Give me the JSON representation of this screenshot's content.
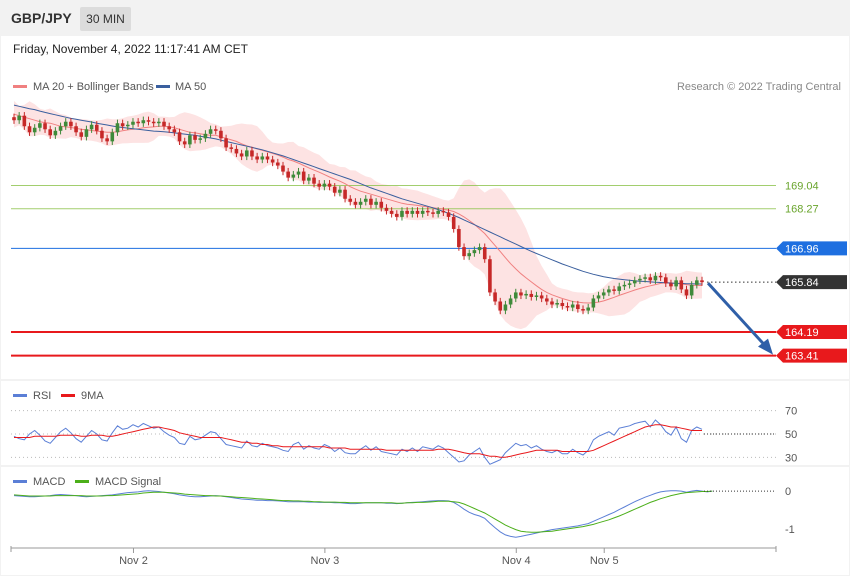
{
  "header": {
    "pair": "GBP/JPY",
    "timeframe": "30 MIN",
    "datetime": "Friday, November 4, 2022 11:17:41 AM CET"
  },
  "legend": {
    "ma20": {
      "label": "MA 20 + Bollinger Bands",
      "color": "#f08080"
    },
    "ma50": {
      "label": "MA 50",
      "color": "#3a5f9e"
    },
    "credit": "Research © 2022 Trading Central"
  },
  "chart_data": [
    {
      "type": "candlestick",
      "name": "price",
      "x_ticks": [
        "Nov 2",
        "Nov 3",
        "Nov 4",
        "Nov 5"
      ],
      "ylim": [
        162.8,
        172.2
      ],
      "levels": [
        {
          "value": 169.04,
          "label": "169.04",
          "kind": "resistance",
          "color": "#8bc34a"
        },
        {
          "value": 168.27,
          "label": "168.27",
          "kind": "resistance",
          "color": "#8bc34a"
        },
        {
          "value": 166.96,
          "label": "166.96",
          "kind": "pivot",
          "color": "#1e6fe0"
        },
        {
          "value": 165.84,
          "label": "165.84",
          "kind": "last",
          "color": "#333333"
        },
        {
          "value": 164.19,
          "label": "164.19",
          "kind": "support",
          "color": "#e8191c"
        },
        {
          "value": 163.41,
          "label": "163.41",
          "kind": "support",
          "color": "#e8191c"
        }
      ],
      "closes": [
        171.2,
        171.35,
        171.0,
        170.8,
        170.95,
        171.1,
        170.9,
        170.7,
        170.85,
        171.0,
        171.15,
        171.0,
        170.8,
        170.65,
        170.9,
        171.05,
        170.85,
        170.6,
        170.5,
        170.8,
        171.1,
        171.0,
        171.05,
        171.15,
        171.1,
        171.2,
        171.15,
        171.1,
        171.15,
        171.0,
        170.9,
        170.8,
        170.5,
        170.4,
        170.7,
        170.55,
        170.6,
        170.75,
        170.9,
        170.85,
        170.6,
        170.3,
        170.25,
        170.1,
        170.0,
        170.2,
        170.0,
        169.9,
        170.0,
        169.9,
        169.8,
        169.7,
        169.5,
        169.3,
        169.4,
        169.5,
        169.2,
        169.3,
        169.1,
        169.0,
        169.1,
        169.0,
        168.8,
        168.9,
        168.6,
        168.5,
        168.4,
        168.5,
        168.6,
        168.4,
        168.5,
        168.3,
        168.2,
        168.1,
        168.0,
        168.2,
        168.1,
        168.2,
        168.1,
        168.2,
        168.15,
        168.1,
        168.2,
        168.15,
        168.0,
        167.6,
        167.0,
        166.7,
        166.8,
        166.9,
        167.0,
        166.6,
        165.5,
        165.2,
        164.9,
        165.1,
        165.3,
        165.5,
        165.4,
        165.45,
        165.35,
        165.4,
        165.3,
        165.2,
        165.1,
        165.15,
        165.05,
        165.0,
        165.1,
        164.95,
        164.9,
        165.0,
        165.3,
        165.4,
        165.5,
        165.6,
        165.55,
        165.7,
        165.75,
        165.8,
        165.9,
        165.95,
        166.0,
        165.9,
        166.05,
        166.0,
        165.8,
        165.7,
        165.9,
        165.6,
        165.4,
        165.75,
        165.9,
        165.84
      ],
      "ma20": [
        171.4,
        171.35,
        171.3,
        171.25,
        171.2,
        171.15,
        171.12,
        171.1,
        171.05,
        171.0,
        170.98,
        170.96,
        170.93,
        170.9,
        170.88,
        170.86,
        170.84,
        170.82,
        170.8,
        170.8,
        170.82,
        170.85,
        170.88,
        170.9,
        170.92,
        170.95,
        170.97,
        170.98,
        171.0,
        171.0,
        170.98,
        170.95,
        170.9,
        170.85,
        170.8,
        170.78,
        170.75,
        170.72,
        170.7,
        170.7,
        170.65,
        170.6,
        170.55,
        170.5,
        170.42,
        170.35,
        170.3,
        170.25,
        170.2,
        170.15,
        170.1,
        170.05,
        169.98,
        169.9,
        169.85,
        169.78,
        169.7,
        169.62,
        169.55,
        169.48,
        169.4,
        169.32,
        169.25,
        169.18,
        169.1,
        169.0,
        168.92,
        168.85,
        168.8,
        168.75,
        168.7,
        168.65,
        168.6,
        168.55,
        168.5,
        168.45,
        168.42,
        168.4,
        168.38,
        168.35,
        168.33,
        168.3,
        168.28,
        168.25,
        168.22,
        168.18,
        168.1,
        168.0,
        167.88,
        167.75,
        167.6,
        167.45,
        167.25,
        167.05,
        166.85,
        166.65,
        166.45,
        166.28,
        166.12,
        165.98,
        165.85,
        165.72,
        165.6,
        165.5,
        165.42,
        165.36,
        165.3,
        165.25,
        165.2,
        165.18,
        165.16,
        165.15,
        165.16,
        165.18,
        165.22,
        165.28,
        165.34,
        165.4,
        165.46,
        165.52,
        165.58,
        165.63,
        165.68,
        165.72,
        165.76,
        165.8,
        165.82,
        165.82,
        165.8,
        165.78,
        165.76,
        165.74,
        165.73,
        165.73
      ],
      "ma50": [
        171.7,
        171.66,
        171.62,
        171.58,
        171.55,
        171.5,
        171.46,
        171.42,
        171.38,
        171.34,
        171.3,
        171.26,
        171.23,
        171.2,
        171.17,
        171.14,
        171.1,
        171.07,
        171.04,
        171.01,
        170.98,
        170.96,
        170.94,
        170.92,
        170.9,
        170.88,
        170.86,
        170.84,
        170.83,
        170.82,
        170.8,
        170.78,
        170.76,
        170.74,
        170.72,
        170.7,
        170.67,
        170.64,
        170.61,
        170.58,
        170.54,
        170.5,
        170.46,
        170.42,
        170.38,
        170.34,
        170.3,
        170.26,
        170.22,
        170.17,
        170.12,
        170.07,
        170.02,
        169.96,
        169.9,
        169.84,
        169.78,
        169.72,
        169.66,
        169.6,
        169.54,
        169.48,
        169.42,
        169.36,
        169.3,
        169.24,
        169.17,
        169.1,
        169.03,
        168.96,
        168.9,
        168.84,
        168.78,
        168.72,
        168.66,
        168.6,
        168.55,
        168.5,
        168.45,
        168.4,
        168.35,
        168.3,
        168.24,
        168.18,
        168.12,
        168.05,
        167.98,
        167.9,
        167.82,
        167.74,
        167.66,
        167.58,
        167.5,
        167.42,
        167.34,
        167.26,
        167.18,
        167.1,
        167.02,
        166.94,
        166.86,
        166.79,
        166.72,
        166.65,
        166.58,
        166.51,
        166.44,
        166.38,
        166.32,
        166.26,
        166.2,
        166.15,
        166.1,
        166.06,
        166.02,
        165.99,
        165.96,
        165.94,
        165.92,
        165.9,
        165.88,
        165.87,
        165.86,
        165.85,
        165.84,
        165.83,
        165.82,
        165.81,
        165.8,
        165.8,
        165.79,
        165.79,
        165.78,
        165.78
      ]
    },
    {
      "type": "line",
      "name": "rsi-panel",
      "ylim": [
        20,
        80
      ],
      "y_ticks": [
        70,
        50,
        30
      ],
      "series": [
        {
          "name": "RSI",
          "color": "#5b7fd6",
          "values": [
            48,
            46,
            45,
            50,
            53,
            49,
            44,
            42,
            47,
            52,
            55,
            51,
            46,
            43,
            48,
            53,
            50,
            45,
            44,
            51,
            57,
            54,
            55,
            58,
            56,
            59,
            57,
            55,
            56,
            52,
            49,
            47,
            42,
            41,
            48,
            45,
            46,
            49,
            52,
            51,
            46,
            41,
            40,
            39,
            38,
            44,
            40,
            39,
            42,
            40,
            39,
            38,
            36,
            35,
            41,
            43,
            37,
            40,
            38,
            37,
            41,
            39,
            35,
            38,
            34,
            33,
            33,
            37,
            40,
            36,
            39,
            35,
            34,
            33,
            32,
            37,
            35,
            38,
            35,
            39,
            38,
            37,
            40,
            38,
            34,
            30,
            26,
            27,
            32,
            35,
            38,
            30,
            24,
            26,
            28,
            34,
            38,
            42,
            40,
            41,
            38,
            40,
            37,
            35,
            34,
            36,
            33,
            33,
            37,
            34,
            32,
            36,
            45,
            48,
            50,
            52,
            49,
            55,
            56,
            57,
            59,
            60,
            61,
            56,
            62,
            58,
            52,
            49,
            56,
            46,
            43,
            53,
            56,
            54
          ]
        },
        {
          "name": "9MA",
          "color": "#e8191c",
          "values": [
            47,
            47,
            47,
            47,
            48,
            48,
            48,
            48,
            48,
            49,
            49,
            49,
            49,
            48,
            48,
            49,
            49,
            49,
            48,
            48,
            49,
            50,
            51,
            52,
            53,
            54,
            55,
            56,
            56,
            55,
            54,
            53,
            51,
            50,
            49,
            48,
            47,
            47,
            47,
            47,
            47,
            46,
            45,
            44,
            43,
            43,
            42,
            42,
            41,
            41,
            40,
            40,
            39,
            39,
            39,
            39,
            39,
            39,
            39,
            39,
            39,
            38,
            38,
            38,
            38,
            37,
            37,
            37,
            37,
            37,
            37,
            37,
            36,
            36,
            36,
            36,
            36,
            36,
            36,
            36,
            36,
            36,
            37,
            37,
            37,
            36,
            35,
            34,
            33,
            33,
            33,
            32,
            31,
            31,
            30,
            30,
            31,
            32,
            33,
            34,
            35,
            36,
            36,
            36,
            36,
            36,
            35,
            35,
            35,
            35,
            35,
            35,
            36,
            38,
            40,
            42,
            44,
            46,
            48,
            50,
            52,
            54,
            56,
            57,
            58,
            58,
            57,
            56,
            56,
            55,
            54,
            53,
            53,
            53
          ]
        }
      ]
    },
    {
      "type": "line",
      "name": "macd-panel",
      "ylim": [
        -1.4,
        0.4
      ],
      "y_ticks": [
        0,
        -1
      ],
      "series": [
        {
          "name": "MACD",
          "color": "#5b7fd6",
          "values": [
            -0.12,
            -0.13,
            -0.14,
            -0.15,
            -0.15,
            -0.14,
            -0.13,
            -0.12,
            -0.1,
            -0.09,
            -0.1,
            -0.11,
            -0.12,
            -0.14,
            -0.15,
            -0.14,
            -0.13,
            -0.12,
            -0.11,
            -0.1,
            -0.08,
            -0.06,
            -0.04,
            -0.03,
            -0.02,
            0.0,
            0.01,
            0.0,
            -0.01,
            -0.03,
            -0.05,
            -0.07,
            -0.1,
            -0.12,
            -0.14,
            -0.15,
            -0.15,
            -0.14,
            -0.13,
            -0.12,
            -0.13,
            -0.15,
            -0.17,
            -0.19,
            -0.21,
            -0.22,
            -0.23,
            -0.24,
            -0.24,
            -0.25,
            -0.25,
            -0.26,
            -0.27,
            -0.28,
            -0.28,
            -0.28,
            -0.28,
            -0.29,
            -0.29,
            -0.3,
            -0.3,
            -0.3,
            -0.31,
            -0.31,
            -0.32,
            -0.33,
            -0.33,
            -0.32,
            -0.31,
            -0.31,
            -0.31,
            -0.31,
            -0.32,
            -0.32,
            -0.33,
            -0.32,
            -0.31,
            -0.3,
            -0.29,
            -0.28,
            -0.27,
            -0.26,
            -0.25,
            -0.25,
            -0.26,
            -0.3,
            -0.38,
            -0.48,
            -0.56,
            -0.62,
            -0.66,
            -0.72,
            -0.85,
            -0.97,
            -1.08,
            -1.16,
            -1.2,
            -1.22,
            -1.2,
            -1.17,
            -1.14,
            -1.11,
            -1.08,
            -1.05,
            -1.02,
            -1.0,
            -0.98,
            -0.96,
            -0.94,
            -0.92,
            -0.89,
            -0.86,
            -0.8,
            -0.74,
            -0.68,
            -0.62,
            -0.56,
            -0.49,
            -0.42,
            -0.35,
            -0.28,
            -0.22,
            -0.16,
            -0.11,
            -0.06,
            -0.02,
            0.0,
            0.01,
            0.01,
            0.0,
            -0.03,
            0.0,
            0.02,
            0.0,
            -0.02,
            0.0
          ]
        },
        {
          "name": "MACD Signal",
          "color": "#4caf1a",
          "values": [
            -0.1,
            -0.11,
            -0.12,
            -0.13,
            -0.13,
            -0.13,
            -0.13,
            -0.13,
            -0.12,
            -0.12,
            -0.12,
            -0.12,
            -0.12,
            -0.12,
            -0.13,
            -0.13,
            -0.13,
            -0.13,
            -0.12,
            -0.12,
            -0.11,
            -0.1,
            -0.09,
            -0.08,
            -0.07,
            -0.05,
            -0.04,
            -0.03,
            -0.03,
            -0.03,
            -0.04,
            -0.05,
            -0.06,
            -0.08,
            -0.09,
            -0.1,
            -0.11,
            -0.12,
            -0.12,
            -0.13,
            -0.13,
            -0.14,
            -0.15,
            -0.16,
            -0.17,
            -0.18,
            -0.19,
            -0.2,
            -0.21,
            -0.22,
            -0.23,
            -0.24,
            -0.25,
            -0.25,
            -0.26,
            -0.26,
            -0.27,
            -0.27,
            -0.28,
            -0.28,
            -0.29,
            -0.29,
            -0.29,
            -0.3,
            -0.3,
            -0.31,
            -0.31,
            -0.31,
            -0.31,
            -0.31,
            -0.31,
            -0.31,
            -0.31,
            -0.31,
            -0.32,
            -0.32,
            -0.31,
            -0.31,
            -0.3,
            -0.3,
            -0.29,
            -0.28,
            -0.27,
            -0.27,
            -0.27,
            -0.28,
            -0.3,
            -0.34,
            -0.4,
            -0.46,
            -0.52,
            -0.58,
            -0.66,
            -0.74,
            -0.82,
            -0.9,
            -0.96,
            -1.02,
            -1.06,
            -1.08,
            -1.09,
            -1.09,
            -1.08,
            -1.07,
            -1.06,
            -1.04,
            -1.02,
            -1.0,
            -0.98,
            -0.96,
            -0.94,
            -0.91,
            -0.88,
            -0.84,
            -0.8,
            -0.76,
            -0.71,
            -0.66,
            -0.6,
            -0.54,
            -0.48,
            -0.42,
            -0.36,
            -0.3,
            -0.25,
            -0.2,
            -0.16,
            -0.12,
            -0.09,
            -0.06,
            -0.04,
            -0.03,
            -0.02,
            -0.01,
            -0.01,
            0.0
          ]
        }
      ]
    }
  ],
  "panels": {
    "rsi": {
      "legend_a": "RSI",
      "legend_b": "9MA",
      "color_a": "#5b7fd6",
      "color_b": "#e8191c"
    },
    "macd": {
      "legend_a": "MACD",
      "legend_b": "MACD Signal",
      "color_a": "#5b7fd6",
      "color_b": "#4caf1a"
    }
  },
  "forecast_arrow": {
    "from": 165.84,
    "to": 163.41,
    "color": "#2f5fa8"
  }
}
